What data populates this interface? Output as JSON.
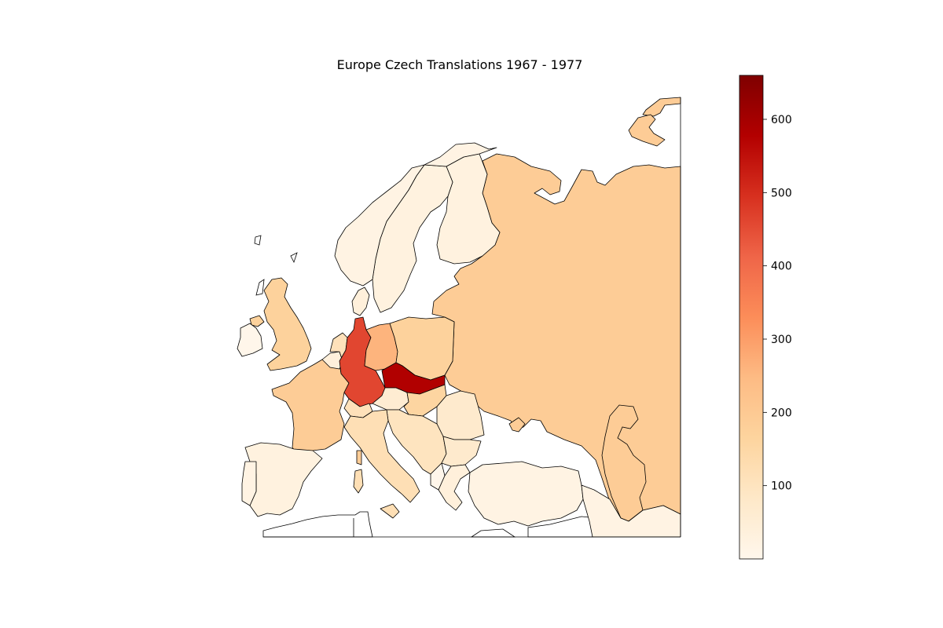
{
  "title": "Europe Czech Translations 1967 - 1977",
  "colorbar": {
    "colormap": "OrRd",
    "min": 0,
    "max": 660,
    "ticks": [
      {
        "value": 100,
        "label": "100"
      },
      {
        "value": 200,
        "label": "200"
      },
      {
        "value": 300,
        "label": "300"
      },
      {
        "value": 400,
        "label": "400"
      },
      {
        "value": 500,
        "label": "500"
      },
      {
        "value": 600,
        "label": "600"
      }
    ],
    "stops": [
      "#fff7ec",
      "#fee8c8",
      "#fdd49e",
      "#fdbb84",
      "#fc8d59",
      "#ef6548",
      "#d7301f",
      "#b30000",
      "#7f0000"
    ]
  },
  "chart_data": {
    "type": "choropleth",
    "title": "Europe Czech Translations 1967 - 1977",
    "value_range": [
      0,
      660
    ],
    "regions": [
      {
        "name": "Czechoslovakia",
        "value": 580
      },
      {
        "name": "West Germany",
        "value": 460
      },
      {
        "name": "East Germany",
        "value": 260
      },
      {
        "name": "Soviet Union",
        "value": 190
      },
      {
        "name": "France",
        "value": 190
      },
      {
        "name": "Poland",
        "value": 170
      },
      {
        "name": "United Kingdom",
        "value": 170
      },
      {
        "name": "Hungary",
        "value": 160
      },
      {
        "name": "Italy",
        "value": 120
      },
      {
        "name": "Switzerland",
        "value": 110
      },
      {
        "name": "Netherlands",
        "value": 110
      },
      {
        "name": "Yugoslavia",
        "value": 100
      },
      {
        "name": "Romania",
        "value": 70
      },
      {
        "name": "Bulgaria",
        "value": 70
      },
      {
        "name": "Austria",
        "value": 60
      },
      {
        "name": "Belgium",
        "value": 40
      },
      {
        "name": "Sweden",
        "value": 30
      },
      {
        "name": "Norway",
        "value": 20
      },
      {
        "name": "Finland",
        "value": 30
      },
      {
        "name": "Denmark",
        "value": 40
      },
      {
        "name": "Spain",
        "value": 30
      },
      {
        "name": "Portugal",
        "value": 20
      },
      {
        "name": "Ireland",
        "value": 5
      },
      {
        "name": "Greece",
        "value": 40
      },
      {
        "name": "Turkey",
        "value": 20
      },
      {
        "name": "Iran",
        "value": 20
      },
      {
        "name": "Albania",
        "value": 5
      }
    ]
  }
}
